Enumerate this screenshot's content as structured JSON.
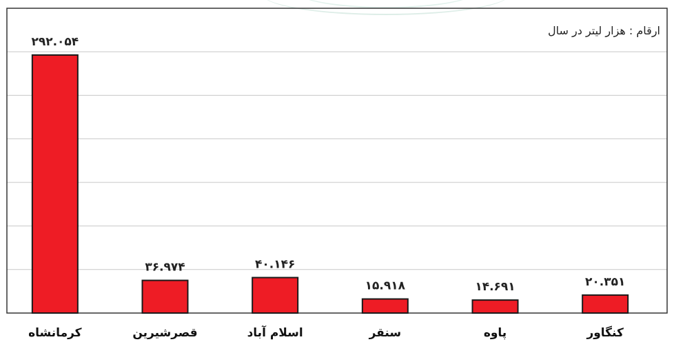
{
  "chart_data": {
    "type": "bar",
    "unit_note": "ارقام : هزار لیتر در سال",
    "categories": [
      "کرمانشاه",
      "قصرشیرین",
      "اسلام آباد",
      "سنقر",
      "پاوه",
      "کنگاور"
    ],
    "values": [
      292054,
      36974,
      40146,
      15918,
      14691,
      20351
    ],
    "data_labels": [
      "۲۹۲.۰۵۴",
      "۳۶.۹۷۴",
      "۴۰.۱۴۶",
      "۱۵.۹۱۸",
      "۱۴.۶۹۱",
      "۲۰.۳۵۱"
    ],
    "ylim": [
      0,
      345000
    ],
    "grid": true,
    "colors": {
      "bar": "#ee1c25",
      "bar_outline": "#1a1a1a",
      "grid": "#c8c8c8",
      "frame": "#333333"
    }
  }
}
